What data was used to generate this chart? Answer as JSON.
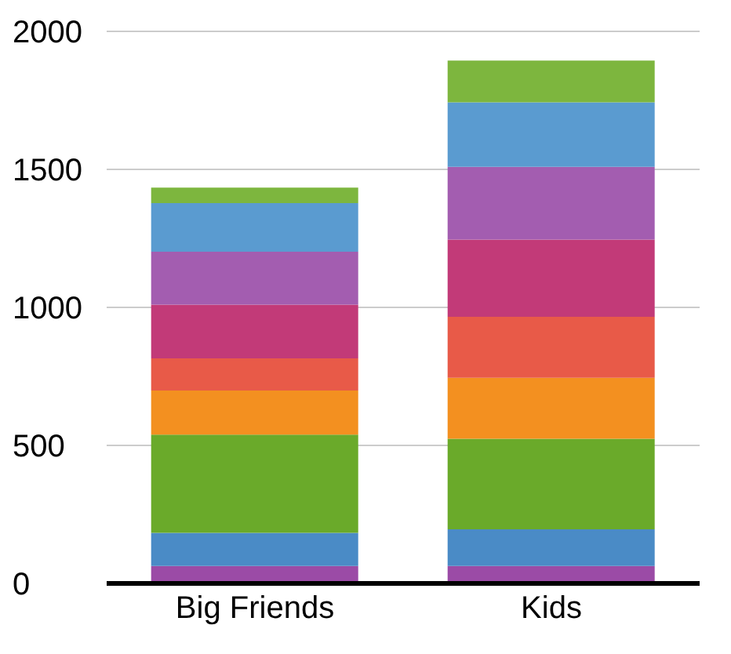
{
  "chart_data": {
    "type": "bar",
    "stacked": true,
    "categories": [
      "Big Friends",
      "Kids"
    ],
    "series": [
      {
        "color": "#9b4ba6",
        "values": [
          63,
          63
        ]
      },
      {
        "color": "#4a8bc6",
        "values": [
          120,
          133
        ]
      },
      {
        "color": "#6aaa2a",
        "values": [
          356,
          328
        ]
      },
      {
        "color": "#f39020",
        "values": [
          160,
          221
        ]
      },
      {
        "color": "#e85a48",
        "values": [
          116,
          221
        ]
      },
      {
        "color": "#c23a78",
        "values": [
          195,
          280
        ]
      },
      {
        "color": "#a35db0",
        "values": [
          192,
          263
        ]
      },
      {
        "color": "#5a9bd0",
        "values": [
          176,
          234
        ]
      },
      {
        "color": "#7db63e",
        "values": [
          56,
          151
        ]
      }
    ],
    "ylim": [
      0,
      2000
    ],
    "yticks": [
      0,
      500,
      1000,
      1500,
      2000
    ],
    "grid": "y",
    "legend": false
  }
}
